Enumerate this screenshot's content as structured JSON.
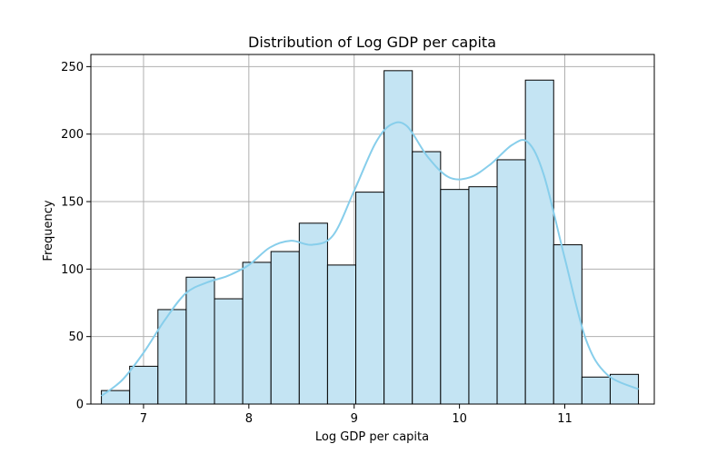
{
  "chart_data": {
    "type": "bar",
    "subtype": "histogram-with-kde",
    "title": "Distribution of Log GDP per capita",
    "xlabel": "Log GDP per capita",
    "ylabel": "Frequency",
    "xlim": [
      6.5,
      11.85
    ],
    "ylim": [
      0,
      259
    ],
    "xticks": [
      7,
      8,
      9,
      10,
      11
    ],
    "yticks": [
      0,
      50,
      100,
      150,
      200,
      250
    ],
    "grid": true,
    "bin_start": 6.6,
    "bin_width": 0.2684,
    "values": [
      10,
      28,
      70,
      94,
      78,
      105,
      113,
      134,
      103,
      157,
      247,
      187,
      159,
      161,
      181,
      240,
      118,
      20,
      22
    ],
    "kde": {
      "x": [
        6.6,
        6.8,
        7.0,
        7.2,
        7.4,
        7.6,
        7.8,
        8.0,
        8.2,
        8.4,
        8.6,
        8.8,
        9.0,
        9.2,
        9.35,
        9.5,
        9.7,
        9.9,
        10.1,
        10.3,
        10.5,
        10.65,
        10.8,
        11.0,
        11.2,
        11.4,
        11.7
      ],
      "y": [
        6,
        18,
        38,
        62,
        82,
        90,
        95,
        103,
        116,
        121,
        118,
        125,
        158,
        193,
        207,
        206,
        183,
        168,
        168,
        178,
        192,
        194,
        170,
        108,
        48,
        22,
        11
      ]
    },
    "colors": {
      "bar_fill": "#c4e4f3",
      "bar_edge": "#000000",
      "kde_line": "#87ceeb",
      "grid": "#b0b0b0"
    }
  }
}
